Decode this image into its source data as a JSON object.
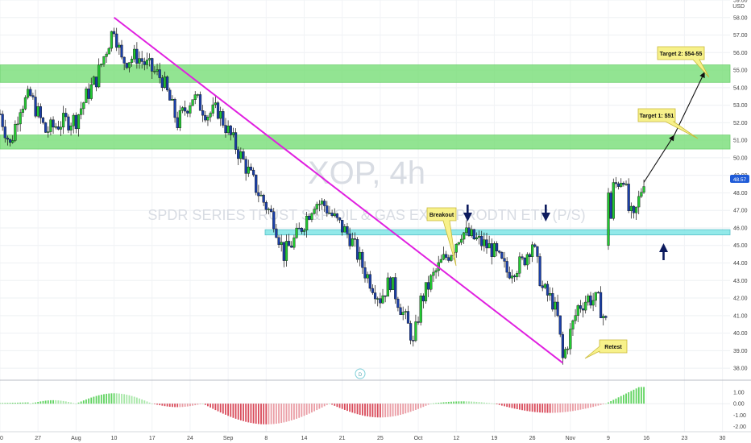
{
  "watermark": {
    "symbol": "XOP, 4h",
    "description": "SPDR SERIES TRUST S&P OIL & GAS EXP & PRODTN ETF (P/S)"
  },
  "currency": "USD",
  "last_price_label": "48.57",
  "annotations": {
    "target2": "Target 2: $54-55",
    "target1": "Target 1: $51",
    "breakout": "Breakout",
    "retest": "Retest"
  },
  "indicator_marker": "D",
  "colors": {
    "up": "#22c932",
    "down": "#1a3fa8",
    "zone_green": "#7fe07f",
    "zone_cyan": "#80e6e6",
    "trendline": "#e020e0",
    "hist_green": "#5fd35f",
    "hist_red": "#d94a5a",
    "label_bg": "#f7f18a",
    "arrow": "#0d1b5e"
  },
  "chart_data": {
    "type": "candlestick",
    "title": "XOP, 4h",
    "ylim": [
      37.5,
      59.0
    ],
    "y_ticks": [
      "38.00",
      "39.00",
      "40.00",
      "41.00",
      "42.00",
      "43.00",
      "44.00",
      "45.00",
      "46.00",
      "47.00",
      "48.00",
      "49.00",
      "50.00",
      "51.00",
      "52.00",
      "53.00",
      "54.00",
      "55.00",
      "56.00",
      "57.00",
      "58.00",
      "59.00"
    ],
    "x_ticks": [
      {
        "label": "20",
        "pos": 0
      },
      {
        "label": "27",
        "pos": 15
      },
      {
        "label": "Aug",
        "pos": 30
      },
      {
        "label": "10",
        "pos": 45
      },
      {
        "label": "17",
        "pos": 60
      },
      {
        "label": "24",
        "pos": 75
      },
      {
        "label": "Sep",
        "pos": 90
      },
      {
        "label": "8",
        "pos": 105
      },
      {
        "label": "14",
        "pos": 120
      },
      {
        "label": "21",
        "pos": 135
      },
      {
        "label": "25",
        "pos": 150
      },
      {
        "label": "Oct",
        "pos": 165
      },
      {
        "label": "12",
        "pos": 180
      },
      {
        "label": "19",
        "pos": 195
      },
      {
        "label": "26",
        "pos": 210
      },
      {
        "label": "Nov",
        "pos": 225
      },
      {
        "label": "9",
        "pos": 240
      },
      {
        "label": "16",
        "pos": 255
      },
      {
        "label": "23",
        "pos": 270
      },
      {
        "label": "30",
        "pos": 285
      }
    ],
    "anchors": [
      [
        0,
        52.5
      ],
      [
        4,
        50.7
      ],
      [
        8,
        53.0
      ],
      [
        12,
        53.5
      ],
      [
        18,
        51.5
      ],
      [
        24,
        52.0
      ],
      [
        30,
        52.2
      ],
      [
        34,
        53.5
      ],
      [
        38,
        54.5
      ],
      [
        45,
        57.5
      ],
      [
        48,
        55.5
      ],
      [
        54,
        55.8
      ],
      [
        60,
        55.0
      ],
      [
        64,
        54.5
      ],
      [
        70,
        52.0
      ],
      [
        76,
        53.5
      ],
      [
        82,
        52.5
      ],
      [
        86,
        52.7
      ],
      [
        90,
        51.5
      ],
      [
        96,
        49.8
      ],
      [
        102,
        48.0
      ],
      [
        108,
        46.5
      ],
      [
        112,
        44.5
      ],
      [
        117,
        45.5
      ],
      [
        124,
        47.5
      ],
      [
        128,
        47.3
      ],
      [
        132,
        46.5
      ],
      [
        138,
        45.5
      ],
      [
        144,
        43.5
      ],
      [
        150,
        42.0
      ],
      [
        154,
        43.0
      ],
      [
        158,
        41.5
      ],
      [
        162,
        40.0
      ],
      [
        163,
        39.3
      ],
      [
        166,
        41.8
      ],
      [
        170,
        43.0
      ],
      [
        174,
        44.0
      ],
      [
        178,
        44.7
      ],
      [
        182,
        45.8
      ],
      [
        188,
        45.3
      ],
      [
        194,
        44.8
      ],
      [
        200,
        43.5
      ],
      [
        206,
        44.0
      ],
      [
        210,
        45.2
      ],
      [
        214,
        42.5
      ],
      [
        218,
        41.8
      ],
      [
        220,
        40.8
      ],
      [
        222,
        38.5
      ],
      [
        225,
        40.0
      ],
      [
        228,
        41.5
      ],
      [
        232,
        42.0
      ],
      [
        236,
        41.8
      ],
      [
        239,
        40.6
      ],
      [
        240,
        44.8
      ],
      [
        242,
        48.3
      ],
      [
        246,
        49.0
      ],
      [
        248,
        47.0
      ],
      [
        250,
        46.4
      ],
      [
        254,
        48.8
      ]
    ],
    "zones": [
      {
        "name": "upper-resistance-zone",
        "low": 54.3,
        "high": 55.3
      },
      {
        "name": "middle-resistance-zone",
        "low": 50.5,
        "high": 51.3
      },
      {
        "name": "breakout-support-zone",
        "low": 45.6,
        "high": 45.9
      }
    ],
    "trendline": {
      "from": [
        45,
        58.0
      ],
      "to": [
        222,
        38.3
      ]
    },
    "target_arrows": [
      {
        "from": [
          254,
          48.6
        ],
        "to": [
          266,
          51.3
        ]
      },
      {
        "from": [
          266,
          51.3
        ],
        "to": [
          278,
          54.9
        ]
      }
    ],
    "histogram_ylim": [
      -2.3,
      1.9
    ],
    "histogram_ticks": [
      "1.00",
      "0.00",
      "-1.00",
      "-2.00"
    ]
  }
}
